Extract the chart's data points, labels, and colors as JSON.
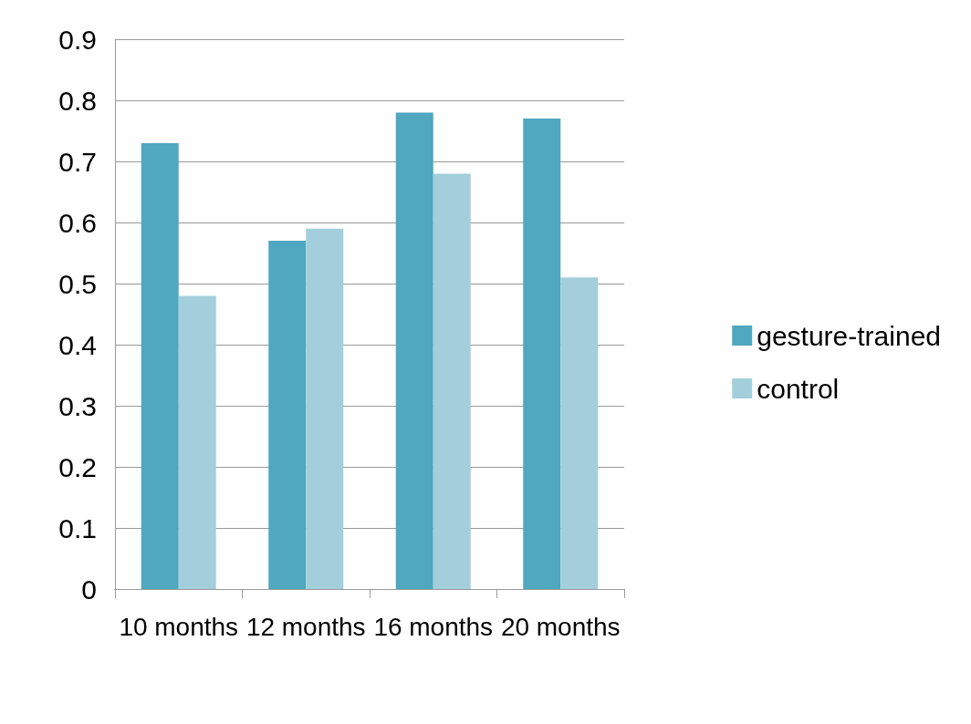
{
  "chart_data": {
    "type": "bar",
    "categories": [
      "10 months",
      "12 months",
      "16 months",
      "20 months"
    ],
    "series": [
      {
        "name": "gesture-trained",
        "color": "#4fa7c0",
        "values": [
          0.73,
          0.57,
          0.78,
          0.77
        ]
      },
      {
        "name": "control",
        "color": "#a3cfdc",
        "values": [
          0.48,
          0.59,
          0.68,
          0.51
        ]
      }
    ],
    "ylim": [
      0,
      0.9
    ],
    "yticks": [
      0,
      0.1,
      0.2,
      0.3,
      0.4,
      0.5,
      0.6,
      0.7,
      0.8,
      0.9
    ],
    "grid": "y",
    "legend": "right"
  }
}
